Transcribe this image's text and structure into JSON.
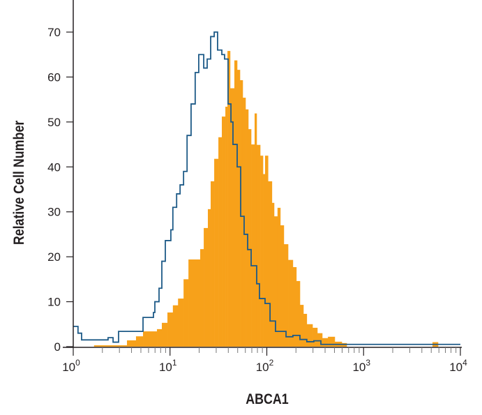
{
  "chart_data": {
    "type": "histogram",
    "title": "",
    "xlabel": "ABCA1",
    "ylabel": "Relative Cell Number",
    "xscale": "log",
    "xlim": [
      1,
      10000
    ],
    "ylim": [
      0,
      70
    ],
    "grid": false,
    "legend": "none",
    "x_ticks": [
      {
        "base": "10",
        "exp": "0"
      },
      {
        "base": "10",
        "exp": "1"
      },
      {
        "base": "10",
        "exp": "2"
      },
      {
        "base": "10",
        "exp": "3"
      },
      {
        "base": "10",
        "exp": "4"
      }
    ],
    "y_ticks": [
      "0",
      "10",
      "20",
      "30",
      "40",
      "50",
      "60",
      "70"
    ],
    "series": [
      {
        "style": "outline",
        "color": "#1d5a87",
        "x_end": 10000,
        "x": [
          1.0,
          1.12,
          1.22,
          2.29,
          2.58,
          2.94,
          5.26,
          6.74,
          6.97,
          7.7,
          8.23,
          8.94,
          10.2,
          10.7,
          11.7,
          12.7,
          13.8,
          15.0,
          16.5,
          18.2,
          19.8,
          22.3,
          24.2,
          26.3,
          28.6,
          31.0,
          34.3,
          36.6,
          39.8,
          42.6,
          44.7,
          49.4,
          53.7,
          58.3,
          63.4,
          68.9,
          78.6,
          84.0,
          95.9,
          108,
          123,
          158,
          186,
          220,
          259,
          306,
          362
        ],
        "y": [
          4.5,
          3,
          1.5,
          2,
          1,
          3.4,
          6.5,
          7.6,
          10,
          13,
          19,
          23.6,
          26,
          31,
          34,
          36,
          39,
          47,
          54,
          61,
          65,
          62,
          64,
          69,
          70,
          66,
          65,
          64,
          54,
          50,
          45,
          40,
          29,
          25,
          21.6,
          18,
          14,
          10.7,
          9.6,
          5.7,
          3.4,
          2.2,
          2.5,
          1.6,
          1.1,
          1.3,
          0.5
        ]
      },
      {
        "style": "filled",
        "color": "#f7a11a",
        "x_end": 5880,
        "x": [
          1.64,
          3.59,
          4.45,
          5.26,
          7.33,
          8.23,
          9.4,
          10.7,
          12.1,
          13.8,
          15.5,
          18.2,
          20.5,
          22.3,
          24.6,
          26.3,
          28.6,
          31.6,
          34.3,
          37.3,
          39.2,
          41.8,
          46.2,
          49.4,
          52.8,
          56.4,
          60.3,
          64.4,
          68.9,
          74.8,
          78.6,
          85.5,
          91.3,
          95.9,
          103,
          113,
          119,
          129,
          138,
          150,
          166,
          186,
          202,
          220,
          239,
          259,
          297,
          333,
          374,
          428,
          504,
          596,
          669,
          5150
        ],
        "y": [
          0.3,
          1.4,
          2.3,
          3.4,
          3.9,
          5.3,
          7.6,
          9.2,
          10.7,
          15,
          19.4,
          19.4,
          21.7,
          26.4,
          30.6,
          36.8,
          41.8,
          46.6,
          51.2,
          53.4,
          65.8,
          57.5,
          63.7,
          61.6,
          59.3,
          55.4,
          52.8,
          48.4,
          45,
          51.9,
          44.9,
          42.5,
          38.4,
          42.5,
          36.8,
          32,
          29,
          30.9,
          27,
          22.8,
          19.3,
          17.7,
          14.6,
          9.3,
          7.3,
          5,
          4.2,
          3,
          1.9,
          2.2,
          1.1,
          0.8,
          0,
          1
        ]
      }
    ]
  }
}
